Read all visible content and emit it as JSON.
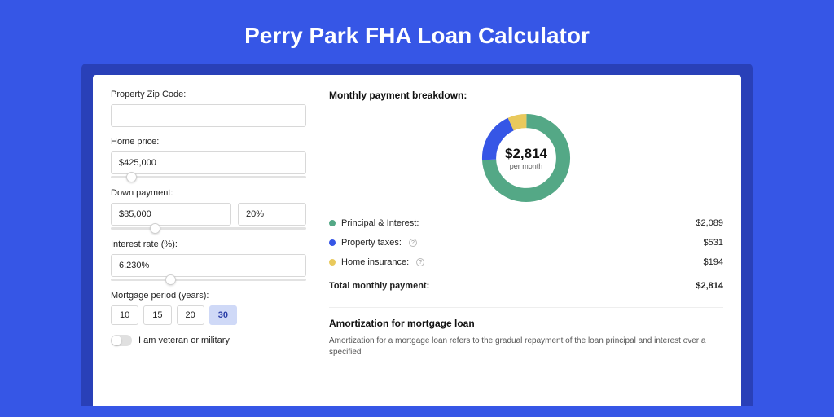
{
  "page": {
    "title": "Perry Park FHA Loan Calculator",
    "bg_color": "#3656e6",
    "outer_card_color": "#2940b8"
  },
  "form": {
    "zip": {
      "label": "Property Zip Code:",
      "value": ""
    },
    "home_price": {
      "label": "Home price:",
      "value": "$425,000",
      "slider_pct": 8
    },
    "down_payment": {
      "label": "Down payment:",
      "amount": "$85,000",
      "percent": "20%",
      "slider_pct": 20
    },
    "interest_rate": {
      "label": "Interest rate (%):",
      "value": "6.230%",
      "slider_pct": 28
    },
    "mortgage_period": {
      "label": "Mortgage period (years):",
      "options": [
        "10",
        "15",
        "20",
        "30"
      ],
      "selected": "30"
    },
    "veteran": {
      "label": "I am veteran or military",
      "checked": false
    }
  },
  "breakdown": {
    "title": "Monthly payment breakdown:",
    "donut": {
      "amount": "$2,814",
      "sub": "per month",
      "slices": [
        {
          "key": "principal_interest",
          "pct": 74.2,
          "color": "#54a886"
        },
        {
          "key": "property_taxes",
          "pct": 18.9,
          "color": "#3656e6"
        },
        {
          "key": "home_insurance",
          "pct": 6.9,
          "color": "#e9c95c"
        }
      ]
    },
    "items": [
      {
        "label": "Principal & Interest:",
        "value": "$2,089",
        "color": "#54a886",
        "info": false
      },
      {
        "label": "Property taxes:",
        "value": "$531",
        "color": "#3656e6",
        "info": true
      },
      {
        "label": "Home insurance:",
        "value": "$194",
        "color": "#e9c95c",
        "info": true
      }
    ],
    "total": {
      "label": "Total monthly payment:",
      "value": "$2,814"
    }
  },
  "amortization": {
    "title": "Amortization for mortgage loan",
    "text": "Amortization for a mortgage loan refers to the gradual repayment of the loan principal and interest over a specified"
  }
}
